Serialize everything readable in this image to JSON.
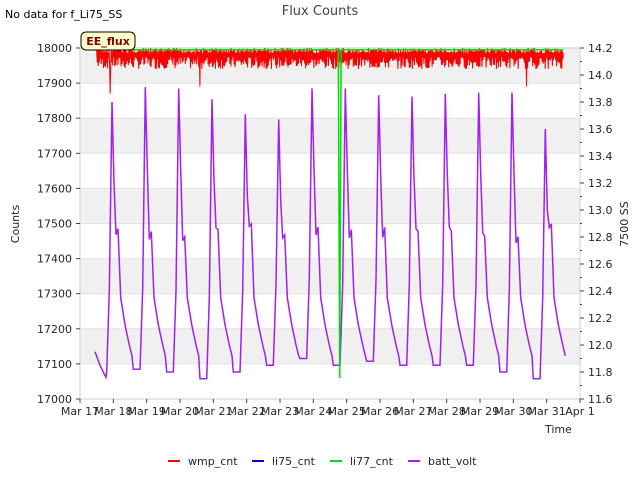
{
  "chart_data": {
    "type": "line",
    "title": "Flux Counts",
    "no_data_note": "No data for f_Li75_SS",
    "badge": "EE_flux",
    "xlabel": "Time",
    "ylabel": "Counts",
    "y2label": "7500 SS",
    "ylim": [
      17000,
      18000
    ],
    "y2lim": [
      11.6,
      14.2
    ],
    "grid": true,
    "grid_style": "alternating horizontal bands",
    "legend_position": "bottom-center",
    "x_range_days": [
      "Mar 17",
      "Apr 1"
    ],
    "x_tick_labels": [
      "Mar 17",
      "Mar 18",
      "Mar 19",
      "Mar 20",
      "Mar 21",
      "Mar 22",
      "Mar 23",
      "Mar 24",
      "Mar 25",
      "Mar 26",
      "Mar 27",
      "Mar 28",
      "Mar 29",
      "Mar 30",
      "Mar 31",
      "Apr 1"
    ],
    "y_tick_labels": [
      "17000",
      "17100",
      "17200",
      "17300",
      "17400",
      "17500",
      "17600",
      "17700",
      "17800",
      "17900",
      "18000"
    ],
    "y2_tick_labels": [
      "11.6",
      "11.8",
      "12.0",
      "12.2",
      "12.4",
      "12.6",
      "12.8",
      "13.0",
      "13.2",
      "13.4",
      "13.6",
      "13.8",
      "14.0",
      "14.2"
    ],
    "series": [
      {
        "name": "wmp_cnt",
        "axis": "left",
        "color": "#ff0000",
        "style": "noisy band",
        "x_start": "Mar 17 12:00",
        "x_end": "Mar 31 12:00",
        "upper": 18000,
        "typical_low": 17940,
        "occasional_dips": [
          [
            0.9,
            17870
          ],
          [
            3.6,
            17890
          ],
          [
            13.4,
            17890
          ]
        ]
      },
      {
        "name": "li75_cnt",
        "axis": "left",
        "color": "#0000cc",
        "points": []
      },
      {
        "name": "li77_cnt",
        "axis": "left",
        "color": "#00dd00",
        "x": [
          "Mar 17 12:00",
          "Mar 24 18:00",
          "Mar 24 19:00",
          "Mar 24 20:00",
          "Mar 31 12:00"
        ],
        "y": [
          17995,
          17995,
          17060,
          17995,
          17995
        ]
      },
      {
        "name": "batt_volt",
        "axis": "right",
        "color": "#a020f0",
        "daily_peaks": [
          {
            "date": "Mar 18",
            "peak": 13.8,
            "min": 11.8
          },
          {
            "date": "Mar 19",
            "peak": 13.91,
            "min": 11.82
          },
          {
            "date": "Mar 20",
            "peak": 13.9,
            "min": 11.8
          },
          {
            "date": "Mar 21",
            "peak": 13.82,
            "min": 11.75
          },
          {
            "date": "Mar 22",
            "peak": 13.71,
            "min": 11.8
          },
          {
            "date": "Mar 23",
            "peak": 13.67,
            "min": 11.85
          },
          {
            "date": "Mar 24",
            "peak": 13.9,
            "min": 11.9
          },
          {
            "date": "Mar 25",
            "peak": 13.9,
            "min": 11.85
          },
          {
            "date": "Mar 26",
            "peak": 13.85,
            "min": 11.88
          },
          {
            "date": "Mar 27",
            "peak": 13.84,
            "min": 11.85
          },
          {
            "date": "Mar 28",
            "peak": 13.86,
            "min": 11.85
          },
          {
            "date": "Mar 29",
            "peak": 13.87,
            "min": 11.85
          },
          {
            "date": "Mar 30",
            "peak": 13.87,
            "min": 11.8
          },
          {
            "date": "Mar 31",
            "peak": 13.6,
            "min": 11.75
          }
        ]
      }
    ]
  }
}
